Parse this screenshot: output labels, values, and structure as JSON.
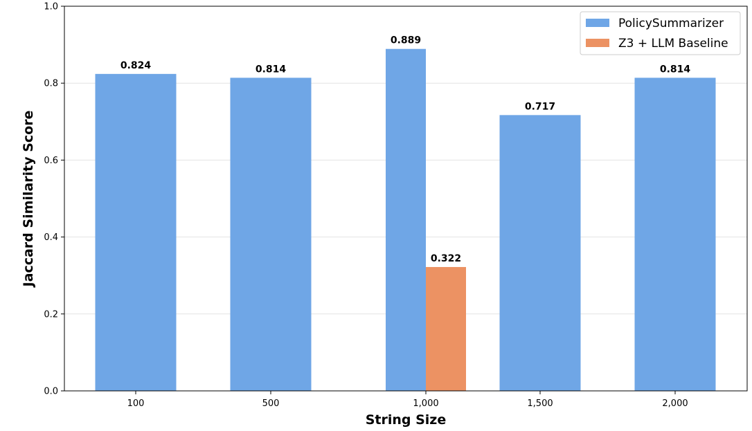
{
  "chart_data": {
    "type": "bar",
    "title": "",
    "xlabel": "String Size",
    "ylabel": "Jaccard Similarity Score",
    "categories": [
      "100",
      "500",
      "1,000",
      "1,500",
      "2,000"
    ],
    "ylim": [
      0,
      1.0
    ],
    "yticks": [
      "0.0",
      "0.2",
      "0.4",
      "0.6",
      "0.8",
      "1.0"
    ],
    "grid": "horizontal",
    "legend_position": "top-right",
    "series": [
      {
        "name": "PolicySummarizer",
        "color": "#6fa6e6",
        "values": [
          0.824,
          0.814,
          0.889,
          0.717,
          0.814
        ],
        "labels": [
          "0.824",
          "0.814",
          "0.889",
          "0.717",
          "0.814"
        ]
      },
      {
        "name": "Z3 + LLM Baseline",
        "color": "#ec9263",
        "values": [
          null,
          null,
          0.322,
          null,
          null
        ],
        "labels": [
          "",
          "",
          "0.322",
          "",
          ""
        ]
      }
    ]
  }
}
